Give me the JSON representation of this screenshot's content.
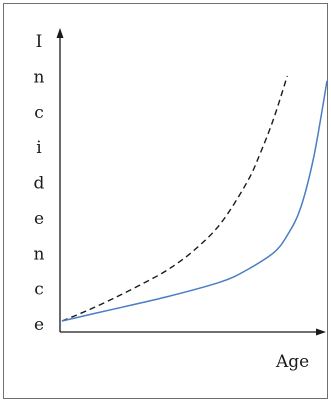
{
  "chart_data": {
    "type": "line",
    "title": "",
    "xlabel": "Age",
    "ylabel": "Incidence",
    "xlim": [
      0,
      100
    ],
    "ylim": [
      0,
      100
    ],
    "grid": false,
    "legend": "none",
    "series": [
      {
        "style": "dashed",
        "color": "#1a1a1a",
        "x": [
          0,
          10,
          20,
          30,
          40,
          50,
          60,
          70,
          75,
          80,
          85
        ],
        "y": [
          0,
          4.5,
          9.5,
          15,
          21,
          29,
          40,
          57,
          69,
          83,
          100
        ]
      },
      {
        "style": "solid",
        "color": "#4a7ec2",
        "x": [
          0,
          20,
          40,
          60,
          70,
          80,
          85,
          90,
          95,
          100
        ],
        "y": [
          0,
          5,
          10,
          16,
          21,
          28,
          35,
          46,
          67,
          98
        ]
      }
    ]
  }
}
